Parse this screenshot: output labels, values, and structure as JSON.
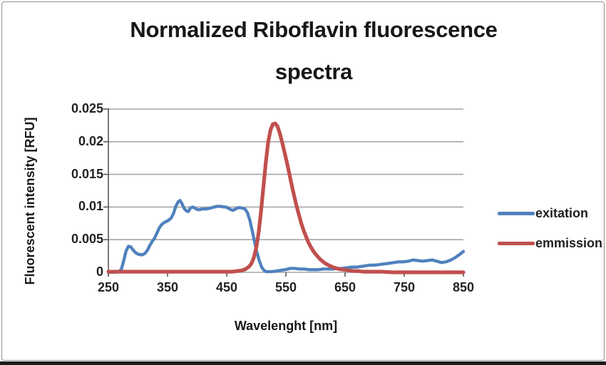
{
  "chart_data": {
    "type": "line",
    "title": "Normalized Riboflavin fluorescence spectra",
    "title_lines": [
      "Normalized Riboflavin fluorescence",
      "spectra"
    ],
    "xlabel": "Wavelenght [nm]",
    "ylabel": "Fluorescent intensity [RFU]",
    "xlim": [
      250,
      850
    ],
    "ylim": [
      0,
      0.025
    ],
    "xticks": [
      "250",
      "350",
      "450",
      "550",
      "650",
      "750",
      "850"
    ],
    "yticks": [
      "0.025",
      "0.02",
      "0.015",
      "0.01",
      "0.005",
      "0"
    ],
    "grid": "horizontal",
    "legend_position": "right",
    "colors": {
      "grid": "#a6a6a6",
      "axis": "#595959",
      "text": "#1f1f1f",
      "frame_border": "#8f8f8f",
      "bottom_strip": "#1c1c1c"
    },
    "series": [
      {
        "name": "exitation",
        "color": "#4F81BD",
        "points": [
          [
            250,
            0
          ],
          [
            260,
            0
          ],
          [
            268,
            0.0001
          ],
          [
            272,
            0.0005
          ],
          [
            276,
            0.0018
          ],
          [
            280,
            0.0033
          ],
          [
            284,
            0.004
          ],
          [
            288,
            0.0039
          ],
          [
            292,
            0.0034
          ],
          [
            296,
            0.003
          ],
          [
            300,
            0.0028
          ],
          [
            304,
            0.0027
          ],
          [
            308,
            0.0027
          ],
          [
            312,
            0.0029
          ],
          [
            316,
            0.0034
          ],
          [
            320,
            0.0041
          ],
          [
            324,
            0.0047
          ],
          [
            328,
            0.0052
          ],
          [
            332,
            0.006
          ],
          [
            336,
            0.0068
          ],
          [
            340,
            0.0073
          ],
          [
            344,
            0.0076
          ],
          [
            348,
            0.0078
          ],
          [
            352,
            0.008
          ],
          [
            356,
            0.0083
          ],
          [
            360,
            0.009
          ],
          [
            364,
            0.0101
          ],
          [
            368,
            0.0108
          ],
          [
            371,
            0.011
          ],
          [
            374,
            0.0106
          ],
          [
            378,
            0.0098
          ],
          [
            382,
            0.0094
          ],
          [
            385,
            0.0093
          ],
          [
            389,
            0.0099
          ],
          [
            393,
            0.01
          ],
          [
            397,
            0.0098
          ],
          [
            401,
            0.0096
          ],
          [
            405,
            0.0096
          ],
          [
            409,
            0.0097
          ],
          [
            413,
            0.0097
          ],
          [
            417,
            0.0097
          ],
          [
            421,
            0.0098
          ],
          [
            425,
            0.0099
          ],
          [
            429,
            0.01
          ],
          [
            433,
            0.0101
          ],
          [
            437,
            0.0101
          ],
          [
            441,
            0.0101
          ],
          [
            445,
            0.01
          ],
          [
            449,
            0.01
          ],
          [
            453,
            0.0098
          ],
          [
            457,
            0.0096
          ],
          [
            461,
            0.0095
          ],
          [
            465,
            0.0097
          ],
          [
            469,
            0.0099
          ],
          [
            473,
            0.0099
          ],
          [
            477,
            0.0098
          ],
          [
            481,
            0.0097
          ],
          [
            485,
            0.0091
          ],
          [
            489,
            0.008
          ],
          [
            493,
            0.0064
          ],
          [
            497,
            0.0047
          ],
          [
            501,
            0.0031
          ],
          [
            505,
            0.0018
          ],
          [
            509,
            0.0008
          ],
          [
            513,
            0.0003
          ],
          [
            517,
            0.0001
          ],
          [
            525,
            0.0001
          ],
          [
            533,
            0.0002
          ],
          [
            541,
            0.0003
          ],
          [
            549,
            0.0004
          ],
          [
            557,
            0.0006
          ],
          [
            565,
            0.0006
          ],
          [
            573,
            0.0005
          ],
          [
            581,
            0.0005
          ],
          [
            589,
            0.0004
          ],
          [
            597,
            0.0004
          ],
          [
            605,
            0.0004
          ],
          [
            613,
            0.0005
          ],
          [
            621,
            0.0005
          ],
          [
            629,
            0.0005
          ],
          [
            637,
            0.0006
          ],
          [
            645,
            0.0006
          ],
          [
            653,
            0.0007
          ],
          [
            661,
            0.0008
          ],
          [
            669,
            0.0008
          ],
          [
            677,
            0.0009
          ],
          [
            685,
            0.001
          ],
          [
            693,
            0.0011
          ],
          [
            701,
            0.0011
          ],
          [
            709,
            0.0012
          ],
          [
            717,
            0.0013
          ],
          [
            725,
            0.0014
          ],
          [
            733,
            0.0015
          ],
          [
            741,
            0.0016
          ],
          [
            749,
            0.0016
          ],
          [
            757,
            0.0017
          ],
          [
            765,
            0.0019
          ],
          [
            773,
            0.0018
          ],
          [
            781,
            0.0017
          ],
          [
            789,
            0.0018
          ],
          [
            797,
            0.0019
          ],
          [
            805,
            0.0017
          ],
          [
            813,
            0.0015
          ],
          [
            821,
            0.0016
          ],
          [
            829,
            0.0019
          ],
          [
            837,
            0.0023
          ],
          [
            843,
            0.0027
          ],
          [
            850,
            0.0032
          ]
        ]
      },
      {
        "name": "emmission",
        "color": "#C0504D",
        "points": [
          [
            250,
            0.0001
          ],
          [
            300,
            0.0001
          ],
          [
            350,
            0.0001
          ],
          [
            400,
            0.0001
          ],
          [
            430,
            0.0001
          ],
          [
            450,
            0.0001
          ],
          [
            460,
            0.0001
          ],
          [
            468,
            0.0002
          ],
          [
            476,
            0.0003
          ],
          [
            482,
            0.0005
          ],
          [
            488,
            0.0009
          ],
          [
            492,
            0.0014
          ],
          [
            496,
            0.0023
          ],
          [
            500,
            0.0038
          ],
          [
            504,
            0.0061
          ],
          [
            508,
            0.0093
          ],
          [
            512,
            0.0131
          ],
          [
            516,
            0.0168
          ],
          [
            520,
            0.0199
          ],
          [
            524,
            0.0218
          ],
          [
            528,
            0.0227
          ],
          [
            532,
            0.0228
          ],
          [
            536,
            0.0223
          ],
          [
            540,
            0.0212
          ],
          [
            544,
            0.0198
          ],
          [
            548,
            0.0183
          ],
          [
            552,
            0.0167
          ],
          [
            556,
            0.015
          ],
          [
            560,
            0.0133
          ],
          [
            564,
            0.0117
          ],
          [
            568,
            0.0102
          ],
          [
            572,
            0.0088
          ],
          [
            576,
            0.0075
          ],
          [
            580,
            0.0064
          ],
          [
            584,
            0.0055
          ],
          [
            588,
            0.0046
          ],
          [
            592,
            0.0039
          ],
          [
            596,
            0.0033
          ],
          [
            600,
            0.0028
          ],
          [
            608,
            0.002
          ],
          [
            616,
            0.0014
          ],
          [
            624,
            0.001
          ],
          [
            632,
            0.0007
          ],
          [
            640,
            0.0005
          ],
          [
            648,
            0.0004
          ],
          [
            656,
            0.0003
          ],
          [
            664,
            0.0002
          ],
          [
            672,
            0.0002
          ],
          [
            680,
            0.0001
          ],
          [
            696,
            0.0001
          ],
          [
            712,
            0.0001
          ],
          [
            730,
            0
          ],
          [
            760,
            0
          ],
          [
            790,
            0
          ],
          [
            820,
            0
          ],
          [
            850,
            0
          ]
        ]
      }
    ]
  }
}
